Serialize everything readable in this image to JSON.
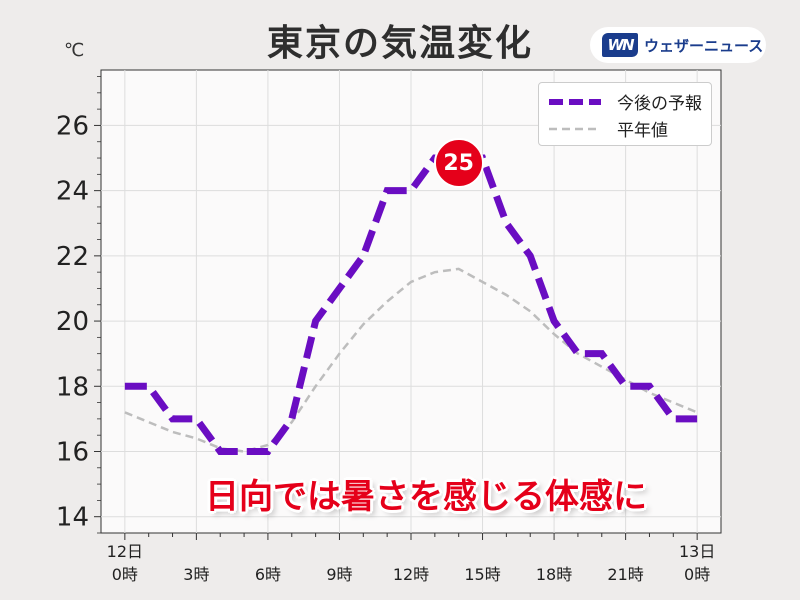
{
  "header": {
    "title": "東京の気温変化",
    "unit": "℃",
    "logo_mark": "WN",
    "logo_text": "ウェザーニュース"
  },
  "callout": "日向では暑さを感じる体感に",
  "colors": {
    "forecast": "#6a0dc2",
    "normal": "#bdbdbd",
    "peak": "#e5001a",
    "callout": "#e5001a",
    "background": "#eeeceb",
    "plot_background": "#fbfafa"
  },
  "chart_data": {
    "type": "line",
    "title": "東京の気温変化",
    "ylabel": "℃",
    "xlabel": "",
    "xlim": [
      -1,
      25
    ],
    "ylim": [
      13.5,
      27.7
    ],
    "grid": true,
    "legend_position": "top-right",
    "yticks": [
      14,
      16,
      18,
      20,
      22,
      24,
      26
    ],
    "xticks": [
      {
        "x": 0,
        "line1": "12日",
        "line2": "0時"
      },
      {
        "x": 3,
        "line1": "",
        "line2": "3時"
      },
      {
        "x": 6,
        "line1": "",
        "line2": "6時"
      },
      {
        "x": 9,
        "line1": "",
        "line2": "9時"
      },
      {
        "x": 12,
        "line1": "",
        "line2": "12時"
      },
      {
        "x": 15,
        "line1": "",
        "line2": "15時"
      },
      {
        "x": 18,
        "line1": "",
        "line2": "18時"
      },
      {
        "x": 21,
        "line1": "",
        "line2": "21時"
      },
      {
        "x": 24,
        "line1": "13日",
        "line2": "0時"
      }
    ],
    "series": [
      {
        "name": "今後の予報",
        "style": "dashed-thick",
        "x": [
          0,
          1,
          2,
          3,
          4,
          5,
          6,
          7,
          8,
          9,
          10,
          11,
          12,
          13,
          14,
          15,
          16,
          17,
          18,
          19,
          20,
          21,
          22,
          23,
          24
        ],
        "y": [
          18,
          18,
          17,
          17,
          16,
          16,
          16,
          17,
          20,
          21,
          22,
          24,
          24,
          25,
          25,
          25,
          23,
          22,
          20,
          19,
          19,
          18,
          18,
          17,
          17
        ]
      },
      {
        "name": "平年値",
        "style": "dashed-thin",
        "x": [
          0,
          1,
          2,
          3,
          4,
          5,
          6,
          7,
          8,
          9,
          10,
          11,
          12,
          13,
          14,
          15,
          16,
          17,
          18,
          19,
          20,
          21,
          22,
          23,
          24
        ],
        "y": [
          17.2,
          16.9,
          16.6,
          16.4,
          16.1,
          16.0,
          16.2,
          16.9,
          18.0,
          19.0,
          19.9,
          20.6,
          21.2,
          21.5,
          21.6,
          21.2,
          20.8,
          20.3,
          19.6,
          19.0,
          18.6,
          18.2,
          17.8,
          17.5,
          17.2
        ]
      }
    ],
    "peak_label": {
      "x": 14,
      "y": 25,
      "text": "25"
    }
  }
}
